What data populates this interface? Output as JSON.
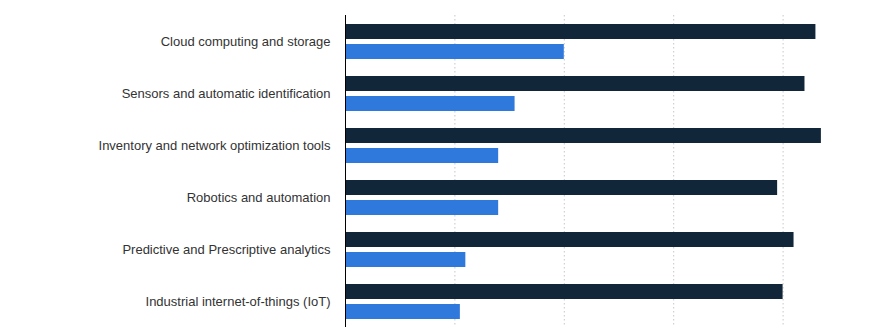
{
  "chart_data": {
    "type": "bar",
    "orientation": "horizontal",
    "categories": [
      "Cloud computing and storage",
      "Sensors and automatic identification",
      "Inventory and network optimization tools",
      "Robotics and automation",
      "Predictive and Prescriptive analytics",
      "Industrial internet-of-things (IoT)"
    ],
    "series": [
      {
        "color": "#12263a",
        "values": [
          86,
          84,
          87,
          79,
          82,
          80
        ]
      },
      {
        "color": "#2f78dc",
        "values": [
          40,
          31,
          28,
          28,
          22,
          21
        ]
      }
    ],
    "xlim": [
      0,
      100
    ],
    "xticks": [
      0,
      20,
      40,
      60,
      80,
      100
    ],
    "grid": true,
    "tick_labels": "y"
  }
}
